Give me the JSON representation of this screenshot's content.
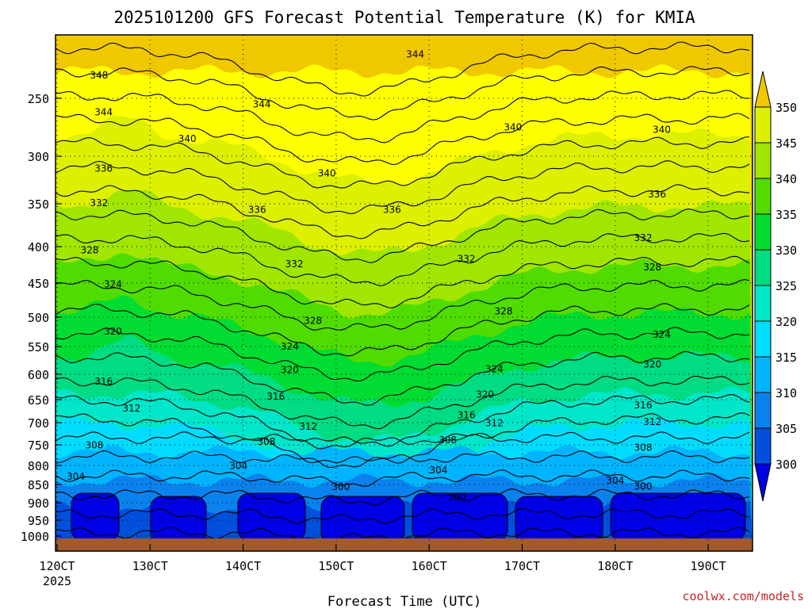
{
  "chart_data": {
    "type": "heatmap",
    "title": "2025101200 GFS Forecast Potential Temperature (K) for KMIA",
    "xlabel": "Forecast Time (UTC)",
    "ylabel": "",
    "x_ticks": [
      "120CT",
      "130CT",
      "140CT",
      "150CT",
      "160CT",
      "170CT",
      "180CT",
      "190CT"
    ],
    "x_subtitle": "2025",
    "y_ticks": [
      250,
      300,
      350,
      400,
      450,
      500,
      550,
      600,
      650,
      700,
      750,
      800,
      850,
      900,
      950,
      1000
    ],
    "y_axis": "pressure (hPa), inverted",
    "colorbar": {
      "levels": [
        300,
        305,
        310,
        315,
        320,
        325,
        330,
        335,
        340,
        345,
        350
      ],
      "colors": [
        "#0000e6",
        "#0050dc",
        "#0a82ee",
        "#00b4ff",
        "#00dcff",
        "#00e6c8",
        "#00dc82",
        "#00dc32",
        "#50dc00",
        "#a0e600",
        "#dcf000",
        "#ffff00",
        "#f0c800"
      ]
    },
    "contour_labels": [
      {
        "value": "348",
        "day": 12.45,
        "p": 230
      },
      {
        "value": "344",
        "day": 12.5,
        "p": 262
      },
      {
        "value": "344",
        "day": 14.2,
        "p": 255
      },
      {
        "value": "344",
        "day": 15.85,
        "p": 212
      },
      {
        "value": "340",
        "day": 13.4,
        "p": 285
      },
      {
        "value": "340",
        "day": 14.9,
        "p": 318
      },
      {
        "value": "340",
        "day": 16.9,
        "p": 275
      },
      {
        "value": "340",
        "day": 18.5,
        "p": 277
      },
      {
        "value": "336",
        "day": 12.5,
        "p": 313
      },
      {
        "value": "336",
        "day": 14.15,
        "p": 357
      },
      {
        "value": "336",
        "day": 15.6,
        "p": 357
      },
      {
        "value": "336",
        "day": 18.45,
        "p": 340
      },
      {
        "value": "332",
        "day": 12.45,
        "p": 349
      },
      {
        "value": "332",
        "day": 14.55,
        "p": 424
      },
      {
        "value": "332",
        "day": 16.4,
        "p": 417
      },
      {
        "value": "332",
        "day": 18.3,
        "p": 390
      },
      {
        "value": "328",
        "day": 12.35,
        "p": 405
      },
      {
        "value": "328",
        "day": 14.75,
        "p": 506
      },
      {
        "value": "328",
        "day": 16.8,
        "p": 491
      },
      {
        "value": "328",
        "day": 18.4,
        "p": 428
      },
      {
        "value": "324",
        "day": 12.6,
        "p": 452
      },
      {
        "value": "324",
        "day": 14.5,
        "p": 550
      },
      {
        "value": "324",
        "day": 16.7,
        "p": 591
      },
      {
        "value": "324",
        "day": 18.5,
        "p": 530
      },
      {
        "value": "320",
        "day": 12.6,
        "p": 524
      },
      {
        "value": "320",
        "day": 14.5,
        "p": 592
      },
      {
        "value": "320",
        "day": 16.6,
        "p": 640
      },
      {
        "value": "320",
        "day": 18.4,
        "p": 582
      },
      {
        "value": "316",
        "day": 12.5,
        "p": 614
      },
      {
        "value": "316",
        "day": 14.35,
        "p": 644
      },
      {
        "value": "316",
        "day": 16.4,
        "p": 684
      },
      {
        "value": "316",
        "day": 18.3,
        "p": 662
      },
      {
        "value": "312",
        "day": 12.8,
        "p": 669
      },
      {
        "value": "312",
        "day": 14.7,
        "p": 709
      },
      {
        "value": "312",
        "day": 16.7,
        "p": 701
      },
      {
        "value": "312",
        "day": 18.4,
        "p": 698
      },
      {
        "value": "308",
        "day": 12.4,
        "p": 751
      },
      {
        "value": "308",
        "day": 14.25,
        "p": 743
      },
      {
        "value": "308",
        "day": 16.2,
        "p": 739
      },
      {
        "value": "308",
        "day": 18.3,
        "p": 757
      },
      {
        "value": "304",
        "day": 12.2,
        "p": 829
      },
      {
        "value": "304",
        "day": 13.95,
        "p": 801
      },
      {
        "value": "304",
        "day": 16.1,
        "p": 812
      },
      {
        "value": "304",
        "day": 18.0,
        "p": 840
      },
      {
        "value": "300",
        "day": 15.05,
        "p": 857
      },
      {
        "value": "300",
        "day": 16.3,
        "p": 885
      },
      {
        "value": "300",
        "day": 18.3,
        "p": 855
      }
    ],
    "credit": "coolwx.com/models"
  }
}
